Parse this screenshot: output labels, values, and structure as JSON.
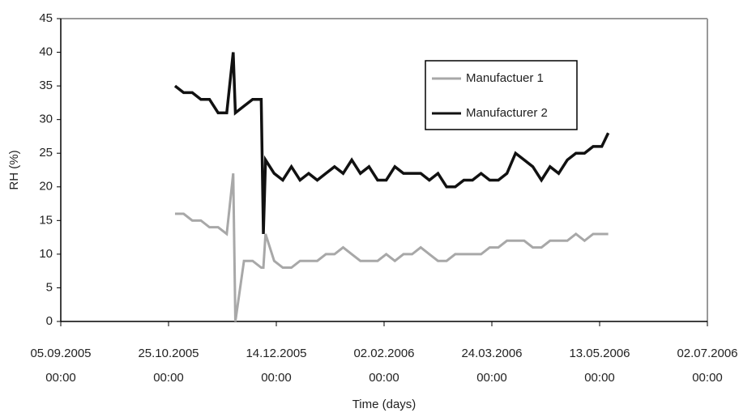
{
  "chart_data": {
    "type": "line",
    "x_label": "Time (days)",
    "y_label": "RH (%)",
    "x": [
      "2005-10-28",
      "2005-11-01",
      "2005-11-05",
      "2005-11-09",
      "2005-11-13",
      "2005-11-17",
      "2005-11-21",
      "2005-11-24",
      "2005-11-25",
      "2005-11-29",
      "2005-12-03",
      "2005-12-07",
      "2005-12-08",
      "2005-12-09",
      "2005-12-13",
      "2005-12-17",
      "2005-12-21",
      "2005-12-25",
      "2005-12-29",
      "2006-01-02",
      "2006-01-06",
      "2006-01-10",
      "2006-01-14",
      "2006-01-18",
      "2006-01-22",
      "2006-01-26",
      "2006-01-30",
      "2006-02-03",
      "2006-02-07",
      "2006-02-11",
      "2006-02-15",
      "2006-02-19",
      "2006-02-23",
      "2006-02-27",
      "2006-03-03",
      "2006-03-07",
      "2006-03-11",
      "2006-03-15",
      "2006-03-19",
      "2006-03-23",
      "2006-03-27",
      "2006-03-31",
      "2006-04-04",
      "2006-04-08",
      "2006-04-12",
      "2006-04-16",
      "2006-04-20",
      "2006-04-24",
      "2006-04-28",
      "2006-05-02",
      "2006-05-06",
      "2006-05-10",
      "2006-05-14",
      "2006-05-17"
    ],
    "series": [
      {
        "name": "Manufactuer 1",
        "color": "#a8a8a8",
        "values": [
          16,
          16,
          15,
          15,
          14,
          14,
          13,
          22,
          0,
          9,
          9,
          8,
          8,
          13,
          9,
          8,
          8,
          9,
          9,
          9,
          10,
          10,
          11,
          10,
          9,
          9,
          9,
          10,
          9,
          10,
          10,
          11,
          10,
          9,
          9,
          10,
          10,
          10,
          10,
          11,
          11,
          12,
          12,
          12,
          11,
          11,
          12,
          12,
          12,
          13,
          12,
          13,
          13,
          13
        ]
      },
      {
        "name": "Manufacturer 2",
        "color": "#111111",
        "values": [
          35,
          34,
          34,
          33,
          33,
          31,
          31,
          40,
          31,
          32,
          33,
          33,
          13,
          24,
          22,
          21,
          23,
          21,
          22,
          21,
          22,
          23,
          22,
          24,
          22,
          23,
          21,
          21,
          23,
          22,
          22,
          22,
          21,
          22,
          20,
          20,
          21,
          21,
          22,
          21,
          21,
          22,
          25,
          24,
          23,
          21,
          23,
          22,
          24,
          25,
          25,
          26,
          26,
          28
        ]
      }
    ],
    "xlim": [
      "2005-09-05",
      "2006-07-02"
    ],
    "xticks": [
      {
        "value": "2005-09-05",
        "label": "05.09.2005 00:00"
      },
      {
        "value": "2005-10-25",
        "label": "25.10.2005 00:00"
      },
      {
        "value": "2005-12-14",
        "label": "14.12.2005 00:00"
      },
      {
        "value": "2006-02-02",
        "label": "02.02.2006 00:00"
      },
      {
        "value": "2006-03-24",
        "label": "24.03.2006 00:00"
      },
      {
        "value": "2006-05-13",
        "label": "13.05.2006 00:00"
      },
      {
        "value": "2006-07-02",
        "label": "02.07.2006 00:00"
      }
    ],
    "ylim": [
      0,
      45
    ],
    "yticks": [
      0,
      5,
      10,
      15,
      20,
      25,
      30,
      35,
      40,
      45
    ],
    "grid": false,
    "legend": "top-right"
  }
}
